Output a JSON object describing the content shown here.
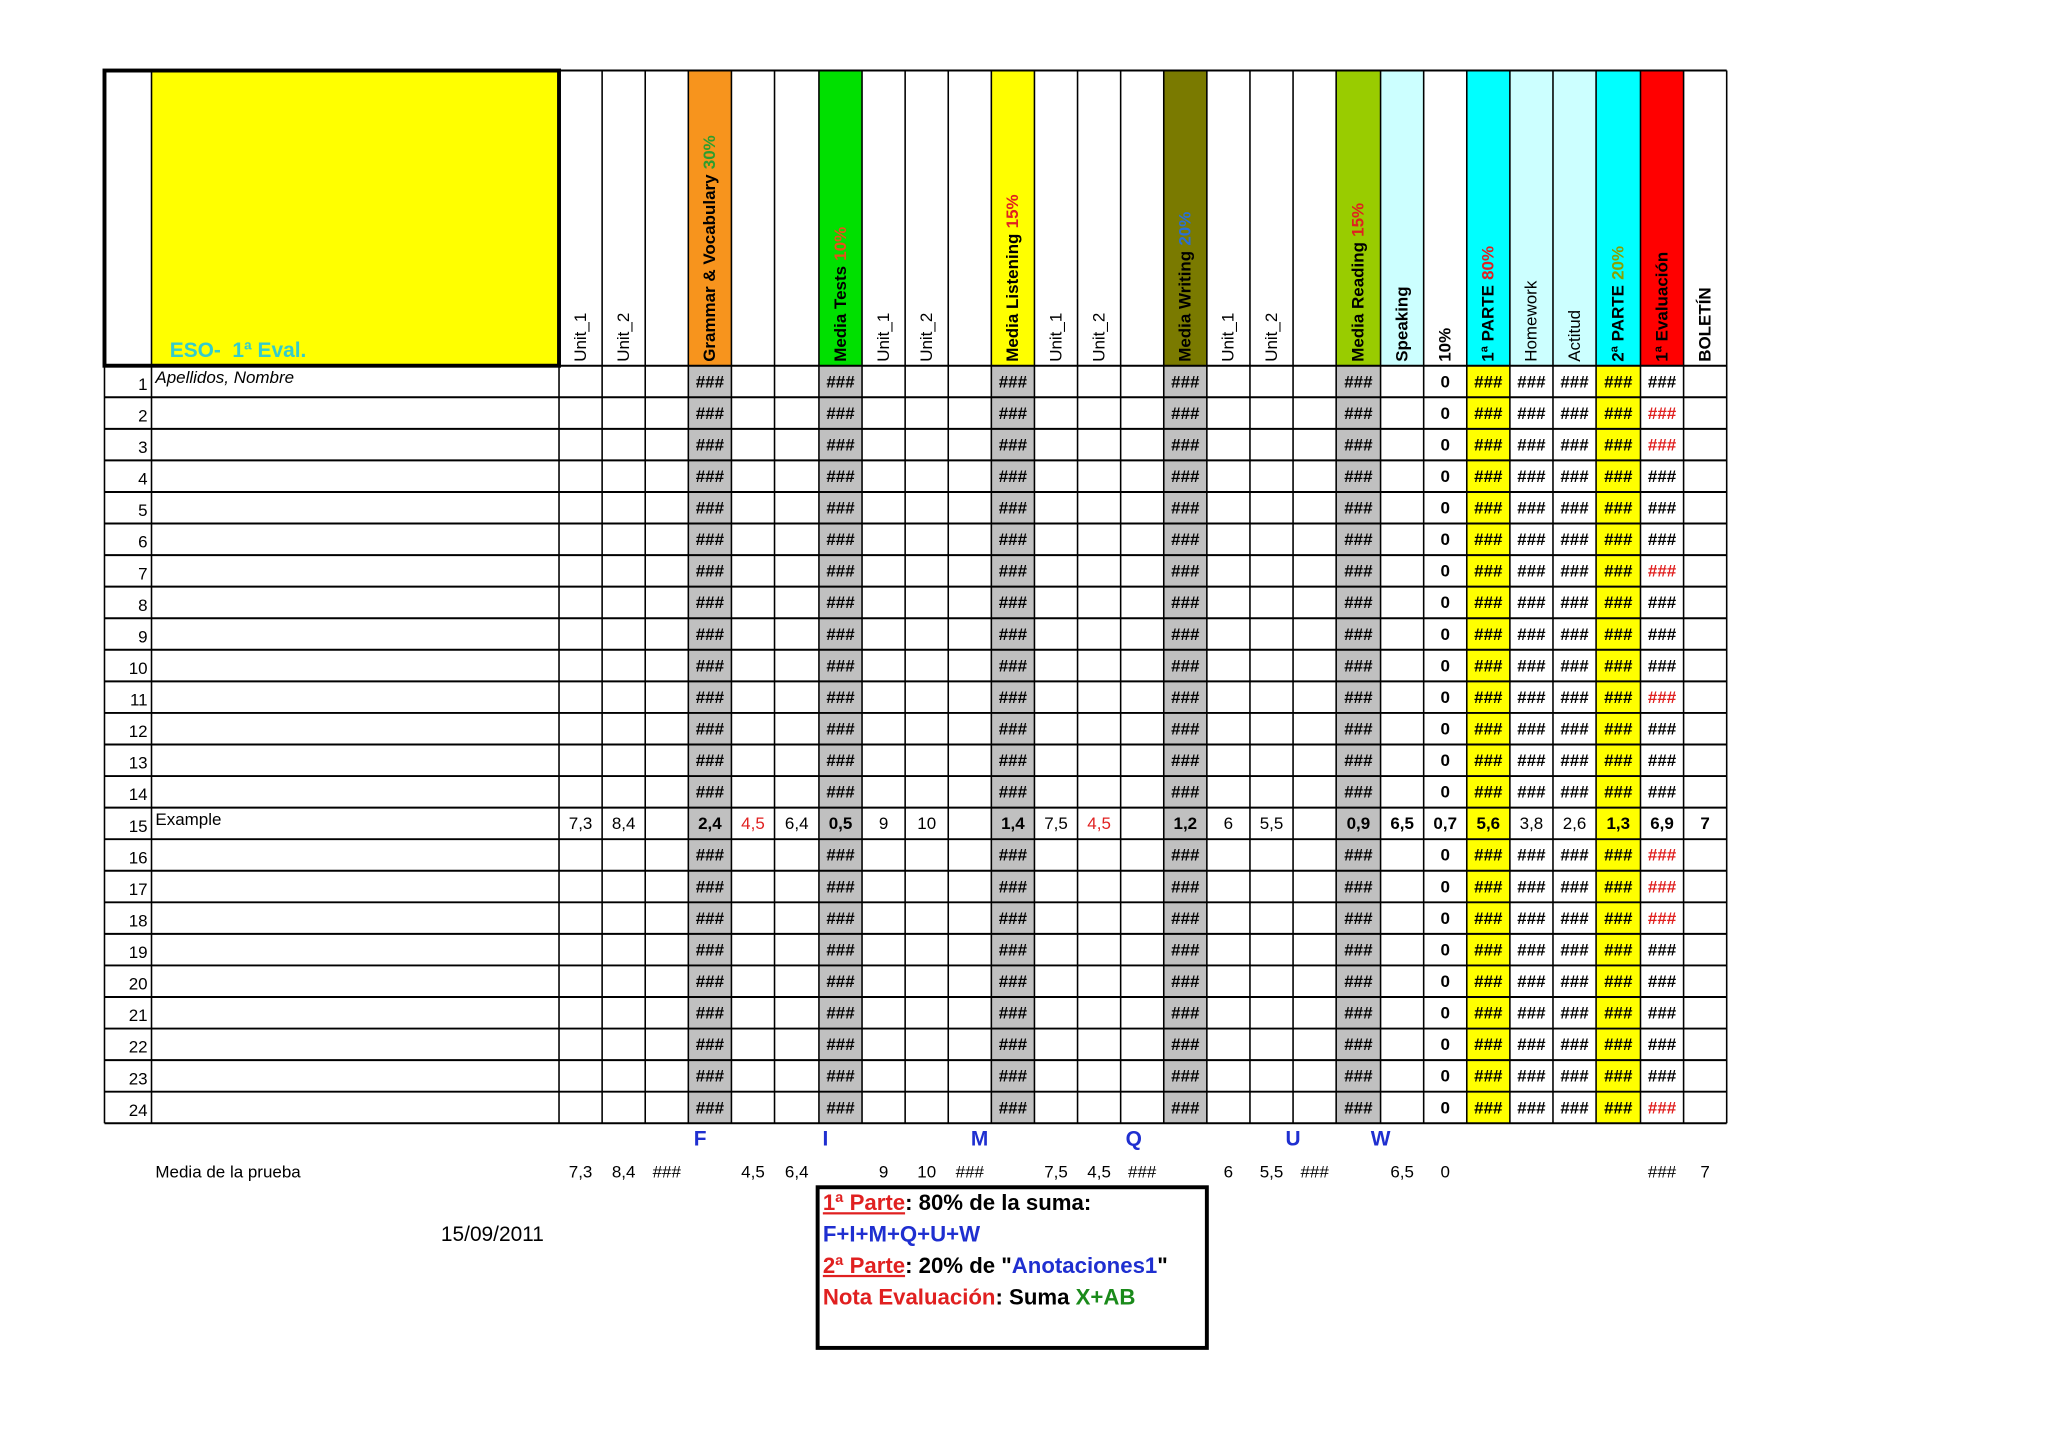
{
  "table": {
    "corner_label": "ESO-  1ª Eval.",
    "columns": [
      {
        "label": "Unit_1"
      },
      {
        "label": "Unit_2"
      },
      null,
      {
        "label": "Grammar & Vocabulary",
        "pct": "30%",
        "pct_color": "#2e9e2e",
        "background": "#f7941d",
        "body": "#c0c0c0",
        "bold": true
      },
      null,
      null,
      {
        "label": "Media Tests",
        "pct": "10%",
        "pct_color": "#e8501b",
        "background": "#00e000",
        "body": "#c0c0c0",
        "bold": true
      },
      {
        "label": "Unit_1"
      },
      {
        "label": "Unit_2"
      },
      null,
      {
        "label": "Media Listening",
        "pct": "15%",
        "pct_color": "#e02020",
        "background": "#ffff00",
        "body": "#c0c0c0",
        "bold": true
      },
      {
        "label": "Unit_1"
      },
      {
        "label": "Unit_2"
      },
      null,
      {
        "label": "Media Writing",
        "pct": "20%",
        "pct_color": "#2a6fd6",
        "background": "#7a7a00",
        "body": "#c0c0c0",
        "bold": true
      },
      {
        "label": "Unit_1"
      },
      {
        "label": "Unit_2"
      },
      null,
      {
        "label": "Media Reading",
        "pct": "15%",
        "pct_color": "#e02020",
        "background": "#99cc00",
        "body": "#c0c0c0",
        "bold": true
      },
      {
        "label": "Speaking",
        "background": "#ccffff",
        "bold": true
      },
      {
        "label": "10%",
        "bold": true
      },
      {
        "label": "1ª PARTE",
        "pct": "80%",
        "pct_color": "#e02020",
        "background": "#00ffff",
        "body": "#ffff00",
        "bold": true
      },
      {
        "label": "Homework",
        "background": "#ccffff"
      },
      {
        "label": "Actitud",
        "background": "#ccffff"
      },
      {
        "label": "2ª PARTE",
        "pct": "20%",
        "pct_color": "#8aa000",
        "background": "#00ffff",
        "body": "#ffff00",
        "bold": true
      },
      {
        "label": "1ª Evaluación",
        "background": "#ff0000",
        "bold": true
      },
      {
        "label": "BOLETÍN",
        "bold": true
      }
    ],
    "rows": [
      {
        "number": 1,
        "name": "Apellidos, Nombre",
        "eval_color": "#000000",
        "cells": [
          null,
          null,
          null,
          "###",
          null,
          null,
          "###",
          null,
          null,
          null,
          "###",
          null,
          null,
          null,
          "###",
          null,
          null,
          null,
          "###",
          null,
          "0",
          "###",
          "###",
          "###",
          "###",
          "###",
          null
        ]
      },
      {
        "number": 2,
        "eval_color": "#e02020",
        "cells": [
          null,
          null,
          null,
          "###",
          null,
          null,
          "###",
          null,
          null,
          null,
          "###",
          null,
          null,
          null,
          "###",
          null,
          null,
          null,
          "###",
          null,
          "0",
          "###",
          "###",
          "###",
          "###",
          "###",
          null
        ]
      },
      {
        "number": 3,
        "eval_color": "#e02020",
        "cells": [
          null,
          null,
          null,
          "###",
          null,
          null,
          "###",
          null,
          null,
          null,
          "###",
          null,
          null,
          null,
          "###",
          null,
          null,
          null,
          "###",
          null,
          "0",
          "###",
          "###",
          "###",
          "###",
          "###",
          null
        ]
      },
      {
        "number": 4,
        "eval_color": "#000000",
        "cells": [
          null,
          null,
          null,
          "###",
          null,
          null,
          "###",
          null,
          null,
          null,
          "###",
          null,
          null,
          null,
          "###",
          null,
          null,
          null,
          "###",
          null,
          "0",
          "###",
          "###",
          "###",
          "###",
          "###",
          null
        ]
      },
      {
        "number": 5,
        "eval_color": "#000000",
        "cells": [
          null,
          null,
          null,
          "###",
          null,
          null,
          "###",
          null,
          null,
          null,
          "###",
          null,
          null,
          null,
          "###",
          null,
          null,
          null,
          "###",
          null,
          "0",
          "###",
          "###",
          "###",
          "###",
          "###",
          null
        ]
      },
      {
        "number": 6,
        "eval_color": "#000000",
        "cells": [
          null,
          null,
          null,
          "###",
          null,
          null,
          "###",
          null,
          null,
          null,
          "###",
          null,
          null,
          null,
          "###",
          null,
          null,
          null,
          "###",
          null,
          "0",
          "###",
          "###",
          "###",
          "###",
          "###",
          null
        ]
      },
      {
        "number": 7,
        "eval_color": "#e02020",
        "cells": [
          null,
          null,
          null,
          "###",
          null,
          null,
          "###",
          null,
          null,
          null,
          "###",
          null,
          null,
          null,
          "###",
          null,
          null,
          null,
          "###",
          null,
          "0",
          "###",
          "###",
          "###",
          "###",
          "###",
          null
        ]
      },
      {
        "number": 8,
        "eval_color": "#000000",
        "cells": [
          null,
          null,
          null,
          "###",
          null,
          null,
          "###",
          null,
          null,
          null,
          "###",
          null,
          null,
          null,
          "###",
          null,
          null,
          null,
          "###",
          null,
          "0",
          "###",
          "###",
          "###",
          "###",
          "###",
          null
        ]
      },
      {
        "number": 9,
        "eval_color": "#000000",
        "cells": [
          null,
          null,
          null,
          "###",
          null,
          null,
          "###",
          null,
          null,
          null,
          "###",
          null,
          null,
          null,
          "###",
          null,
          null,
          null,
          "###",
          null,
          "0",
          "###",
          "###",
          "###",
          "###",
          "###",
          null
        ]
      },
      {
        "number": 10,
        "eval_color": "#000000",
        "cells": [
          null,
          null,
          null,
          "###",
          null,
          null,
          "###",
          null,
          null,
          null,
          "###",
          null,
          null,
          null,
          "###",
          null,
          null,
          null,
          "###",
          null,
          "0",
          "###",
          "###",
          "###",
          "###",
          "###",
          null
        ]
      },
      {
        "number": 11,
        "eval_color": "#e02020",
        "cells": [
          null,
          null,
          null,
          "###",
          null,
          null,
          "###",
          null,
          null,
          null,
          "###",
          null,
          null,
          null,
          "###",
          null,
          null,
          null,
          "###",
          null,
          "0",
          "###",
          "###",
          "###",
          "###",
          "###",
          null
        ]
      },
      {
        "number": 12,
        "eval_color": "#000000",
        "cells": [
          null,
          null,
          null,
          "###",
          null,
          null,
          "###",
          null,
          null,
          null,
          "###",
          null,
          null,
          null,
          "###",
          null,
          null,
          null,
          "###",
          null,
          "0",
          "###",
          "###",
          "###",
          "###",
          "###",
          null
        ]
      },
      {
        "number": 13,
        "eval_color": "#000000",
        "cells": [
          null,
          null,
          null,
          "###",
          null,
          null,
          "###",
          null,
          null,
          null,
          "###",
          null,
          null,
          null,
          "###",
          null,
          null,
          null,
          "###",
          null,
          "0",
          "###",
          "###",
          "###",
          "###",
          "###",
          null
        ]
      },
      {
        "number": 14,
        "eval_color": "#000000",
        "cells": [
          null,
          null,
          null,
          "###",
          null,
          null,
          "###",
          null,
          null,
          null,
          "###",
          null,
          null,
          null,
          "###",
          null,
          null,
          null,
          "###",
          null,
          "0",
          "###",
          "###",
          "###",
          "###",
          "###",
          null
        ]
      },
      {
        "number": 15,
        "name": "Example",
        "eval_color": "#000000",
        "cells": [
          "7,3",
          "8,4",
          null,
          "2,4",
          {
            "text": "4,5",
            "color": "#e02020"
          },
          "6,4",
          "0,5",
          "9",
          "10",
          null,
          "1,4",
          "7,5",
          {
            "text": "4,5",
            "color": "#e02020"
          },
          null,
          "1,2",
          "6",
          "5,5",
          null,
          "0,9",
          "6,5",
          "0,7",
          "5,6",
          "3,8",
          "2,6",
          "1,3",
          "6,9",
          "7"
        ]
      },
      {
        "number": 16,
        "eval_color": "#e02020",
        "cells": [
          null,
          null,
          null,
          "###",
          null,
          null,
          "###",
          null,
          null,
          null,
          "###",
          null,
          null,
          null,
          "###",
          null,
          null,
          null,
          "###",
          null,
          "0",
          "###",
          "###",
          "###",
          "###",
          "###",
          null
        ]
      },
      {
        "number": 17,
        "eval_color": "#e02020",
        "cells": [
          null,
          null,
          null,
          "###",
          null,
          null,
          "###",
          null,
          null,
          null,
          "###",
          null,
          null,
          null,
          "###",
          null,
          null,
          null,
          "###",
          null,
          "0",
          "###",
          "###",
          "###",
          "###",
          "###",
          null
        ]
      },
      {
        "number": 18,
        "eval_color": "#e02020",
        "cells": [
          null,
          null,
          null,
          "###",
          null,
          null,
          "###",
          null,
          null,
          null,
          "###",
          null,
          null,
          null,
          "###",
          null,
          null,
          null,
          "###",
          null,
          "0",
          "###",
          "###",
          "###",
          "###",
          "###",
          null
        ]
      },
      {
        "number": 19,
        "eval_color": "#000000",
        "cells": [
          null,
          null,
          null,
          "###",
          null,
          null,
          "###",
          null,
          null,
          null,
          "###",
          null,
          null,
          null,
          "###",
          null,
          null,
          null,
          "###",
          null,
          "0",
          "###",
          "###",
          "###",
          "###",
          "###",
          null
        ]
      },
      {
        "number": 20,
        "eval_color": "#000000",
        "cells": [
          null,
          null,
          null,
          "###",
          null,
          null,
          "###",
          null,
          null,
          null,
          "###",
          null,
          null,
          null,
          "###",
          null,
          null,
          null,
          "###",
          null,
          "0",
          "###",
          "###",
          "###",
          "###",
          "###",
          null
        ]
      },
      {
        "number": 21,
        "eval_color": "#000000",
        "cells": [
          null,
          null,
          null,
          "###",
          null,
          null,
          "###",
          null,
          null,
          null,
          "###",
          null,
          null,
          null,
          "###",
          null,
          null,
          null,
          "###",
          null,
          "0",
          "###",
          "###",
          "###",
          "###",
          "###",
          null
        ]
      },
      {
        "number": 22,
        "eval_color": "#000000",
        "cells": [
          null,
          null,
          null,
          "###",
          null,
          null,
          "###",
          null,
          null,
          null,
          "###",
          null,
          null,
          null,
          "###",
          null,
          null,
          null,
          "###",
          null,
          "0",
          "###",
          "###",
          "###",
          "###",
          "###",
          null
        ]
      },
      {
        "number": 23,
        "eval_color": "#000000",
        "cells": [
          null,
          null,
          null,
          "###",
          null,
          null,
          "###",
          null,
          null,
          null,
          "###",
          null,
          null,
          null,
          "###",
          null,
          null,
          null,
          "###",
          null,
          "0",
          "###",
          "###",
          "###",
          "###",
          "###",
          null
        ]
      },
      {
        "number": 24,
        "eval_color": "#e02020",
        "cells": [
          null,
          null,
          null,
          "###",
          null,
          null,
          "###",
          null,
          null,
          null,
          "###",
          null,
          null,
          null,
          "###",
          null,
          null,
          null,
          "###",
          null,
          "0",
          "###",
          "###",
          "###",
          "###",
          "###",
          null
        ]
      }
    ],
    "column_letters": [
      "F",
      "I",
      "M",
      "Q",
      "U",
      "W"
    ],
    "averages": {
      "label": "Media de la prueba",
      "cells": [
        "7,3",
        "8,4",
        "###",
        null,
        "4,5",
        "6,4",
        null,
        "9",
        "10",
        "###",
        null,
        "7,5",
        "4,5",
        "###",
        null,
        "6",
        "5,5",
        "###",
        null,
        "6,5",
        "0",
        null,
        null,
        null,
        null,
        "###",
        "7"
      ]
    }
  },
  "date": "15/09/2011",
  "notes": {
    "lines": [
      [
        {
          "text": "1ª Parte",
          "color": "#e02020",
          "underline": true
        },
        {
          "text": ":",
          "color": "#000000"
        },
        {
          "text": " 80% de la suma:",
          "color": "#000000"
        }
      ],
      [
        {
          "text": "F+I+M+Q+U+W",
          "color": "#1f2fd0"
        }
      ],
      [
        {
          "text": "2ª Parte",
          "color": "#e02020",
          "underline": true
        },
        {
          "text": ": 20% de \"",
          "color": "#000000"
        },
        {
          "text": "Anotaciones1",
          "color": "#1f2fd0"
        },
        {
          "text": "\"",
          "color": "#000000"
        }
      ],
      [
        {
          "text": "Nota Evaluación",
          "color": "#e02020"
        },
        {
          "text": ": Suma ",
          "color": "#000000"
        },
        {
          "text": "X+AB",
          "color": "#1a8a1a"
        }
      ]
    ]
  }
}
